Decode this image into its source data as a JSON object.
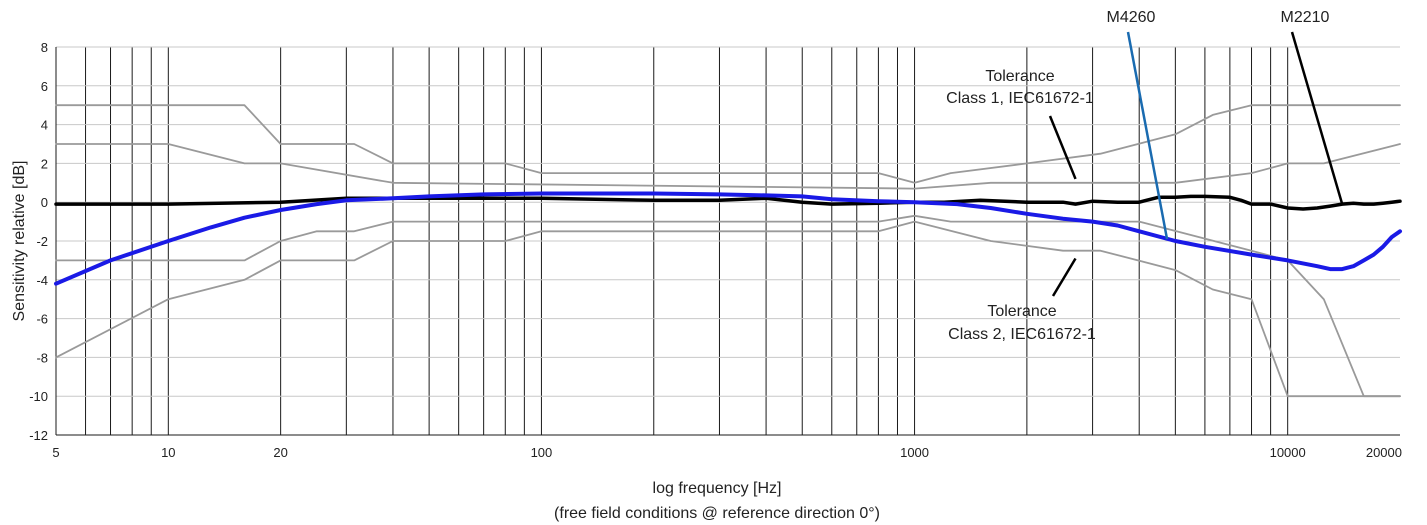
{
  "chart_data": {
    "type": "line",
    "title": "",
    "xlabel": "log frequency [Hz]",
    "xlabel_note": "(free field conditions @ reference direction 0°)",
    "ylabel": "Sensitivity relative [dB]",
    "x_scale": "log",
    "xlim": [
      5,
      20000
    ],
    "ylim": [
      -12,
      8
    ],
    "x_tick_labels": [
      {
        "value": 5,
        "label": "5"
      },
      {
        "value": 10,
        "label": "10"
      },
      {
        "value": 20,
        "label": "20"
      },
      {
        "value": 100,
        "label": "100"
      },
      {
        "value": 1000,
        "label": "1000"
      },
      {
        "value": 10000,
        "label": "10000"
      },
      {
        "value": 20000,
        "label": "20000"
      }
    ],
    "y_ticks": [
      -12,
      -10,
      -8,
      -6,
      -4,
      -2,
      0,
      2,
      4,
      6,
      8
    ],
    "grid": true,
    "series": [
      {
        "name": "Tolerance Class 2 upper",
        "color": "#9a9a9a",
        "x": [
          5,
          16,
          20,
          31.5,
          40,
          80,
          100,
          800,
          1000,
          1250,
          2000,
          3150,
          5000,
          6300,
          8000,
          10000,
          20000
        ],
        "y": [
          5,
          5,
          3,
          3,
          2,
          2,
          1.5,
          1.5,
          1,
          1.5,
          2,
          2.5,
          3.5,
          4.5,
          5,
          5,
          5
        ]
      },
      {
        "name": "Tolerance Class 1 upper",
        "color": "#9a9a9a",
        "x": [
          5,
          10,
          16,
          20,
          40,
          1000,
          1600,
          2000,
          5000,
          8000,
          10000,
          12500,
          20000
        ],
        "y": [
          3,
          3,
          2,
          2,
          1,
          0.7,
          1,
          1,
          1,
          1.5,
          2,
          2,
          3
        ]
      },
      {
        "name": "Tolerance Class 1 lower",
        "color": "#9a9a9a",
        "x": [
          5,
          10,
          16,
          20,
          25,
          31.5,
          40,
          800,
          1000,
          1250,
          4000,
          8000,
          10000,
          12500,
          16000,
          20000
        ],
        "y": [
          -3,
          -3,
          -3,
          -2,
          -1.5,
          -1.5,
          -1,
          -1,
          -0.7,
          -1,
          -1,
          -2.5,
          -3,
          -5,
          -10,
          -10
        ]
      },
      {
        "name": "Tolerance Class 2 lower",
        "color": "#9a9a9a",
        "x": [
          5,
          10,
          16,
          20,
          31.5,
          40,
          80,
          100,
          800,
          1000,
          1600,
          2500,
          3150,
          5000,
          6300,
          8000,
          10000,
          20000
        ],
        "y": [
          -8,
          -5,
          -4,
          -3,
          -3,
          -2,
          -2,
          -1.5,
          -1.5,
          -1,
          -2,
          -2.5,
          -2.5,
          -3.5,
          -4.5,
          -5,
          -10,
          -10
        ]
      },
      {
        "name": "M2210",
        "color": "#000000",
        "x": [
          5,
          10,
          20,
          30,
          50,
          100,
          200,
          300,
          400,
          500,
          600,
          800,
          1000,
          1200,
          1500,
          2000,
          2500,
          2700,
          3000,
          3500,
          4000,
          4500,
          5000,
          5500,
          6000,
          7000,
          7500,
          8000,
          9000,
          10000,
          11000,
          12000,
          13000,
          14000,
          15000,
          16000,
          17000,
          18000,
          19000,
          20000
        ],
        "y": [
          -0.1,
          -0.1,
          0,
          0.2,
          0.2,
          0.2,
          0.1,
          0.1,
          0.2,
          0,
          -0.1,
          -0.05,
          0,
          0,
          0.1,
          0,
          0,
          -0.1,
          0.05,
          0,
          0,
          0.25,
          0.25,
          0.3,
          0.3,
          0.25,
          0.1,
          -0.1,
          -0.1,
          -0.3,
          -0.35,
          -0.3,
          -0.2,
          -0.1,
          -0.05,
          -0.1,
          -0.1,
          -0.05,
          0,
          0.05
        ]
      },
      {
        "name": "M4260",
        "color": "#1a1ae6",
        "x": [
          5,
          7,
          10,
          13,
          16,
          20,
          25,
          30,
          40,
          50,
          70,
          100,
          150,
          200,
          300,
          400,
          500,
          600,
          800,
          1000,
          1300,
          1600,
          2000,
          2500,
          3000,
          3500,
          4000,
          5000,
          6000,
          8000,
          10000,
          12000,
          13000,
          14000,
          15000,
          16000,
          17000,
          18000,
          19000,
          20000
        ],
        "y": [
          -4.2,
          -3,
          -2,
          -1.3,
          -0.8,
          -0.4,
          -0.1,
          0.1,
          0.2,
          0.3,
          0.4,
          0.45,
          0.45,
          0.45,
          0.4,
          0.35,
          0.3,
          0.15,
          0.05,
          0,
          -0.1,
          -0.3,
          -0.6,
          -0.85,
          -1,
          -1.2,
          -1.5,
          -2,
          -2.3,
          -2.7,
          -3,
          -3.3,
          -3.45,
          -3.45,
          -3.3,
          -3,
          -2.7,
          -2.3,
          -1.8,
          -1.5
        ]
      }
    ],
    "annotations": [
      {
        "lines": [
          "Tolerance",
          "Class 1, IEC61672-1"
        ],
        "pointer_to": {
          "x": 2700,
          "y": 1.2
        }
      },
      {
        "lines": [
          "Tolerance",
          "Class 2, IEC61672-1"
        ],
        "pointer_to": {
          "x": 2700,
          "y": -2.9
        }
      },
      {
        "text": "M4260",
        "pointer_to": {
          "x": 4750,
          "y": -1.9
        },
        "color": "#1a6bb0"
      },
      {
        "text": "M2210",
        "pointer_to": {
          "x": 14000,
          "y": -0.1
        },
        "color": "#000000"
      }
    ]
  }
}
